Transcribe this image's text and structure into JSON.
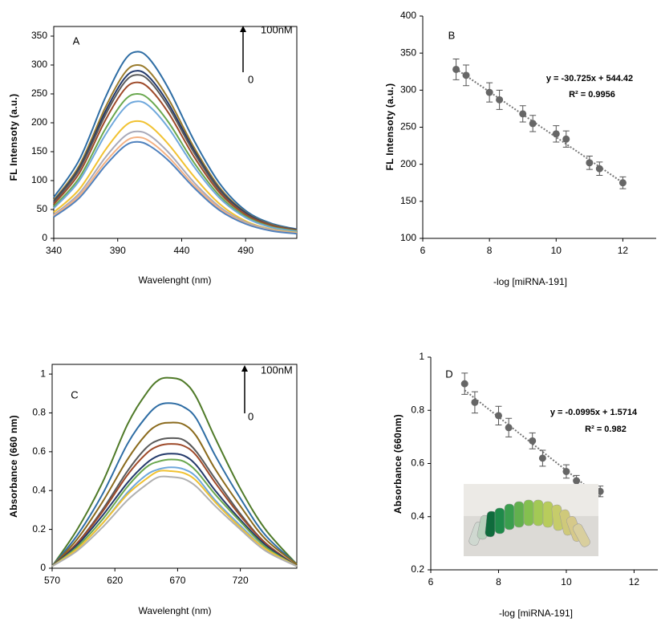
{
  "chart_data": [
    {
      "type": "line",
      "label": "A",
      "ylabel": "FL Intensoty (a.u.)",
      "xlabel": "Wavelenght (nm)",
      "annotations": [
        "100nM",
        "0"
      ],
      "frame": true,
      "x": [
        340,
        360,
        380,
        395,
        405,
        415,
        430,
        450,
        470,
        490,
        510,
        530
      ],
      "xlim": [
        340,
        530
      ],
      "xticks": [
        340,
        390,
        440,
        490
      ],
      "ylim": [
        0,
        350
      ],
      "yticks": [
        0,
        50,
        100,
        150,
        200,
        250,
        300,
        350
      ],
      "series": [
        {
          "color": "#2e6da4",
          "values": [
            71,
            136,
            242,
            307,
            323,
            310,
            258,
            168,
            94,
            48,
            26,
            16
          ]
        },
        {
          "color": "#9a7b2c",
          "values": [
            66,
            126,
            225,
            285,
            300,
            288,
            240,
            156,
            87,
            45,
            24,
            15
          ]
        },
        {
          "color": "#243a6b",
          "values": [
            64,
            122,
            218,
            276,
            290,
            278,
            232,
            151,
            84,
            44,
            23,
            15
          ]
        },
        {
          "color": "#5a5a5a",
          "values": [
            62,
            119,
            212,
            269,
            283,
            272,
            226,
            147,
            82,
            42,
            23,
            14
          ]
        },
        {
          "color": "#9e4a2a",
          "values": [
            59,
            113,
            203,
            257,
            270,
            259,
            216,
            140,
            78,
            41,
            22,
            14
          ]
        },
        {
          "color": "#6aa84f",
          "values": [
            55,
            105,
            188,
            238,
            250,
            240,
            200,
            130,
            73,
            38,
            20,
            13
          ]
        },
        {
          "color": "#6fa8dc",
          "values": [
            52,
            100,
            178,
            225,
            237,
            228,
            190,
            123,
            69,
            36,
            19,
            12
          ]
        },
        {
          "color": "#f1c232",
          "values": [
            45,
            85,
            152,
            193,
            203,
            195,
            162,
            106,
            59,
            30,
            16,
            10
          ]
        },
        {
          "color": "#a9a9b8",
          "values": [
            41,
            78,
            139,
            176,
            185,
            178,
            148,
            96,
            54,
            28,
            15,
            9
          ]
        },
        {
          "color": "#f4b183",
          "values": [
            39,
            74,
            131,
            166,
            175,
            168,
            140,
            91,
            51,
            26,
            14,
            9
          ]
        },
        {
          "color": "#4f81bd",
          "values": [
            37,
            70,
            125,
            159,
            167,
            160,
            134,
            87,
            48,
            25,
            13,
            8
          ]
        }
      ]
    },
    {
      "type": "scatter",
      "label": "B",
      "ylabel": "FL Intensoty (a.u.)",
      "xlabel": "-log [miRNA-191]",
      "annotations": [
        "y = -30.725x + 544.42",
        "R² = 0.9956"
      ],
      "frame": false,
      "trendline": true,
      "color": "#666666",
      "x": [
        7,
        7.3,
        8,
        8.3,
        9,
        9.3,
        10,
        10.3,
        11,
        11.3,
        12
      ],
      "values": [
        328,
        320,
        297,
        287,
        268,
        255,
        241,
        234,
        202,
        194,
        175
      ],
      "errors": [
        14,
        14,
        13,
        13,
        11,
        11,
        11,
        11,
        9,
        9,
        8
      ],
      "xlim": [
        6,
        13
      ],
      "xticks": [
        6,
        8,
        10,
        12
      ],
      "ylim": [
        100,
        400
      ],
      "yticks": [
        100,
        150,
        200,
        250,
        300,
        350,
        400
      ]
    },
    {
      "type": "line",
      "label": "C",
      "ylabel": "Absorbance (660 nm)",
      "xlabel": "Wavelenght (nm)",
      "annotations": [
        "100nM",
        "0"
      ],
      "frame": true,
      "x": [
        570,
        590,
        610,
        630,
        645,
        655,
        665,
        675,
        685,
        700,
        720,
        740,
        765
      ],
      "xlim": [
        570,
        765
      ],
      "xticks": [
        570,
        620,
        670,
        720
      ],
      "ylim": [
        0,
        1.05
      ],
      "yticks": [
        0,
        0.2,
        0.4,
        0.6,
        0.8,
        1
      ],
      "series": [
        {
          "color": "#4f7a28",
          "values": [
            0.01,
            0.2,
            0.44,
            0.74,
            0.9,
            0.97,
            0.98,
            0.96,
            0.88,
            0.67,
            0.41,
            0.2,
            0.02
          ]
        },
        {
          "color": "#2e6da4",
          "values": [
            0.01,
            0.17,
            0.38,
            0.64,
            0.78,
            0.84,
            0.85,
            0.83,
            0.77,
            0.58,
            0.36,
            0.17,
            0.02
          ]
        },
        {
          "color": "#8a6a1c",
          "values": [
            0.01,
            0.15,
            0.34,
            0.56,
            0.69,
            0.74,
            0.75,
            0.74,
            0.68,
            0.51,
            0.32,
            0.15,
            0.02
          ]
        },
        {
          "color": "#5a5a5a",
          "values": [
            0.01,
            0.13,
            0.3,
            0.5,
            0.62,
            0.66,
            0.67,
            0.66,
            0.6,
            0.46,
            0.28,
            0.13,
            0.01
          ]
        },
        {
          "color": "#9e4a2a",
          "values": [
            0.01,
            0.13,
            0.29,
            0.48,
            0.59,
            0.63,
            0.64,
            0.63,
            0.58,
            0.44,
            0.27,
            0.13,
            0.01
          ]
        },
        {
          "color": "#243a6b",
          "values": [
            0.01,
            0.12,
            0.27,
            0.44,
            0.54,
            0.58,
            0.59,
            0.58,
            0.53,
            0.4,
            0.25,
            0.12,
            0.01
          ]
        },
        {
          "color": "#6aa84f",
          "values": [
            0.01,
            0.11,
            0.25,
            0.42,
            0.52,
            0.55,
            0.56,
            0.55,
            0.5,
            0.38,
            0.24,
            0.11,
            0.01
          ]
        },
        {
          "color": "#6fa8dc",
          "values": [
            0.01,
            0.1,
            0.23,
            0.39,
            0.48,
            0.51,
            0.52,
            0.51,
            0.47,
            0.35,
            0.22,
            0.1,
            0.01
          ]
        },
        {
          "color": "#f1c232",
          "values": [
            0.01,
            0.1,
            0.23,
            0.38,
            0.46,
            0.5,
            0.5,
            0.49,
            0.45,
            0.34,
            0.21,
            0.1,
            0.01
          ]
        },
        {
          "color": "#b0b0b0",
          "values": [
            0.01,
            0.09,
            0.21,
            0.35,
            0.43,
            0.47,
            0.47,
            0.46,
            0.42,
            0.32,
            0.2,
            0.09,
            0.01
          ]
        }
      ]
    },
    {
      "type": "scatter",
      "label": "D",
      "ylabel": "Absorbance (660nm)",
      "xlabel": "-log [miRNA-191]",
      "annotations": [
        "y = -0.0995x + 1.5714",
        "R² = 0.982"
      ],
      "frame": false,
      "trendline": true,
      "color": "#666666",
      "x": [
        7,
        7.3,
        8,
        8.3,
        9,
        9.3,
        10,
        10.3,
        11
      ],
      "values": [
        0.9,
        0.83,
        0.78,
        0.735,
        0.685,
        0.62,
        0.57,
        0.535,
        0.495
      ],
      "errors": [
        0.04,
        0.04,
        0.035,
        0.035,
        0.03,
        0.03,
        0.025,
        0.02,
        0.02
      ],
      "xlim": [
        6,
        12.7
      ],
      "xticks": [
        6,
        8,
        10,
        12
      ],
      "ylim": [
        0.2,
        1
      ],
      "yticks": [
        0.2,
        0.4,
        0.6,
        0.8,
        1
      ]
    }
  ]
}
